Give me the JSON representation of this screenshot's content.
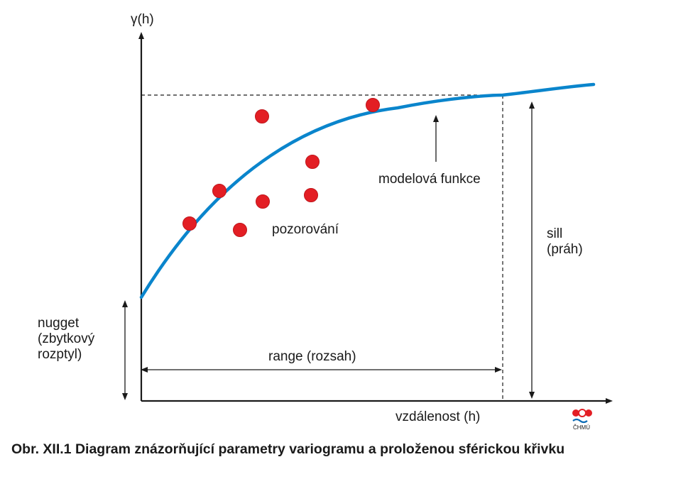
{
  "labels": {
    "y_axis": "γ(h)",
    "x_axis": "vzdálenost (h)",
    "model": "modelová funkce",
    "observations": "pozorování",
    "sill_line1": "sill",
    "sill_line2": "(práh)",
    "nugget_line1": "nugget",
    "nugget_line2": "(zbytkový",
    "nugget_line3": "rozptyl)",
    "range": "range (rozsah)"
  },
  "logo": {
    "text": "ČHMÚ"
  },
  "caption": "Obr. XII.1  Diagram znázorňující parametry variogramu a proloženou sférickou křivku",
  "colors": {
    "curve": "#0a85cc",
    "points": "#e31e24",
    "lines": "#1a1a1a"
  }
}
